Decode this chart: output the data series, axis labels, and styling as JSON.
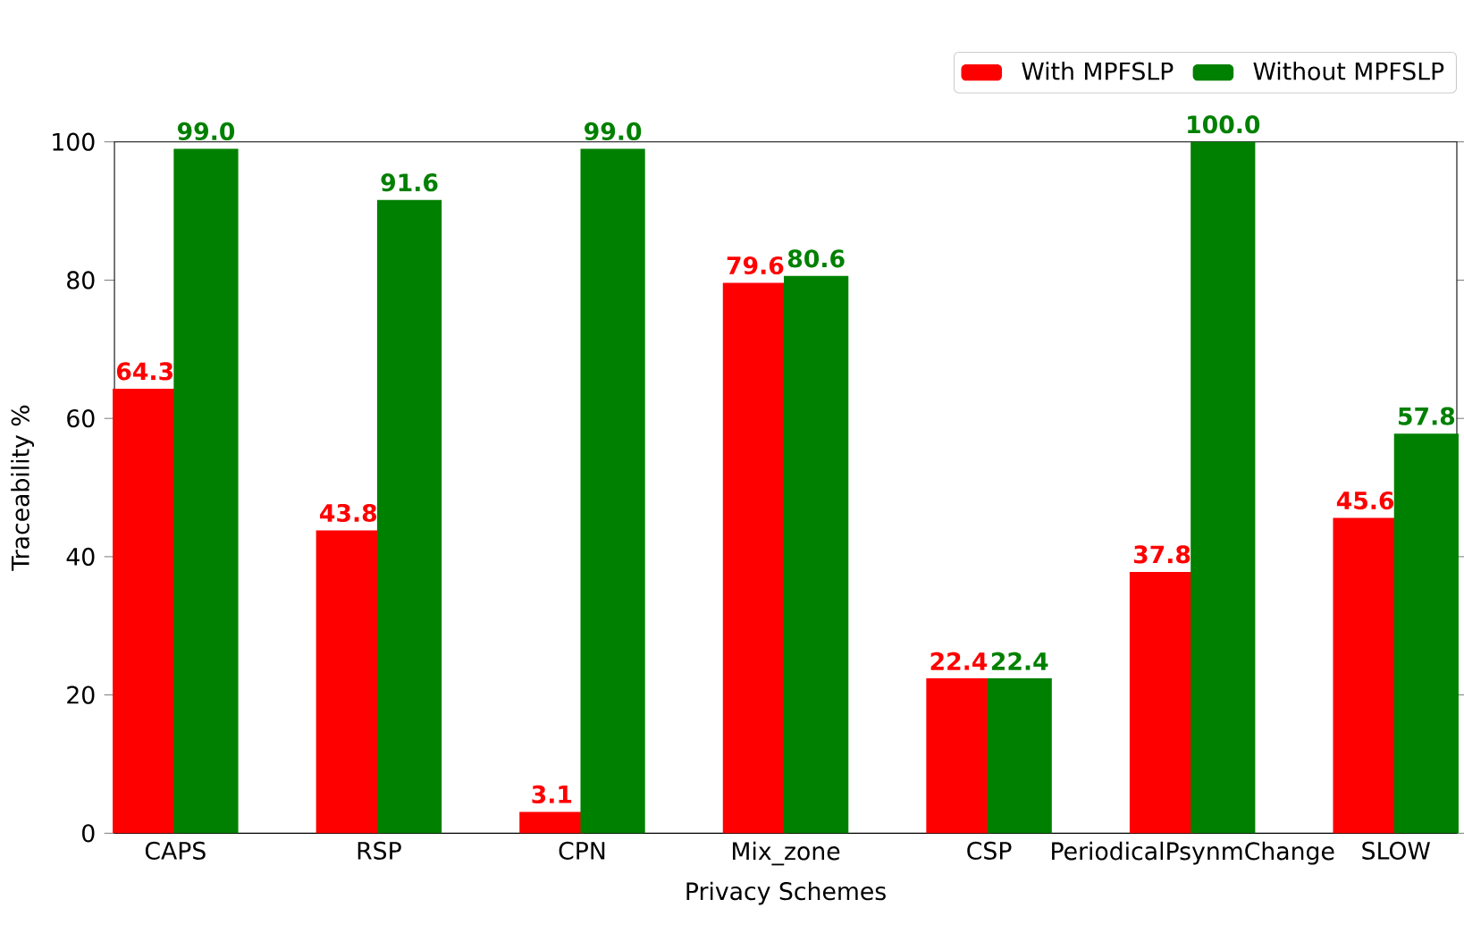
{
  "chart_data": {
    "type": "bar",
    "xlabel": "Privacy Schemes",
    "ylabel": "Traceability %",
    "categories": [
      "CAPS",
      "RSP",
      "CPN",
      "Mix_zone",
      "CSP",
      "PeriodicalPsynmChange",
      "SLOW"
    ],
    "series": [
      {
        "name": "With MPFSLP",
        "color": "#ff0000",
        "values": [
          64.3,
          43.8,
          3.1,
          79.6,
          22.4,
          37.8,
          45.6
        ],
        "value_labels": [
          "64.3",
          "43.8",
          "3.1",
          "79.6",
          "22.4",
          "37.8",
          "45.6"
        ]
      },
      {
        "name": "Without MPFSLP",
        "color": "#008000",
        "values": [
          99.0,
          91.6,
          99.0,
          80.6,
          22.4,
          100.0,
          57.8
        ],
        "value_labels": [
          "99.0",
          "91.6",
          "99.0",
          "80.6",
          "22.4",
          "100.0",
          "57.8"
        ]
      }
    ],
    "ylim": [
      0,
      100
    ],
    "yticks": [
      0,
      20,
      40,
      60,
      80,
      100
    ],
    "legend": "top right",
    "grid": false
  }
}
